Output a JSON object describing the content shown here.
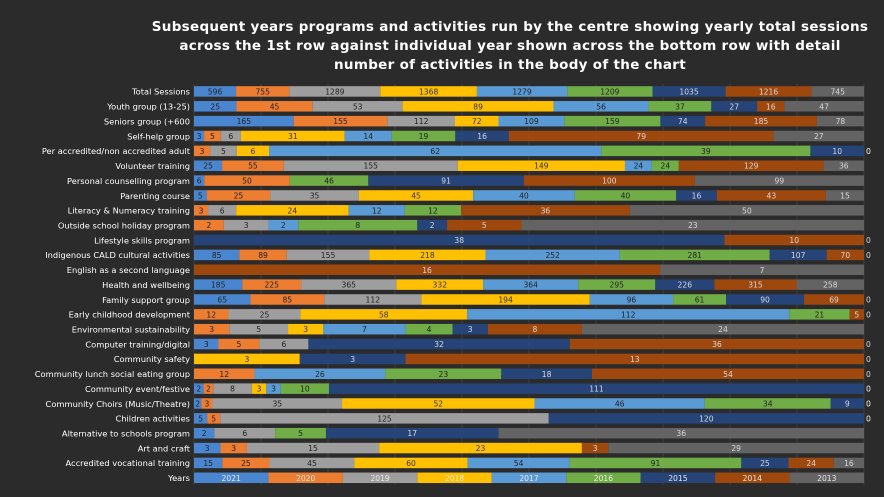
{
  "chart_data": {
    "type": "bar",
    "stacked": "percent",
    "orientation": "horizontal",
    "title": "Subsequent years programs and activities run by the centre showing yearly total sessions across the 1st row against individual year shown across the bottom row with detail  number of activities in the body of the chart",
    "grid": true,
    "legend": "none",
    "categories": [
      "Total Sessions",
      "Youth group (13-25)",
      "Seniors group (+600",
      "Self-help group",
      "Per accredited/non accredited adult",
      "Volunteer training",
      "Personal counselling program",
      "Parenting course",
      "Literacy & Numeracy training",
      "Outside school holiday program",
      "Lifestyle skills program",
      "Indigenous CALD cultural activities",
      "English as a second language",
      "Health and wellbeing",
      "Family support group",
      "Early childhood development",
      "Environmental sustainability",
      "Computer training/digital",
      "Community safety",
      "Community lunch social eating group",
      "Community event/festive",
      "Community Choirs (Music/Theatre)",
      "Children activities",
      "Alternative to schools program",
      "Art and craft",
      "Accredited vocational training",
      "Years"
    ],
    "year_row": [
      "2021",
      "2020",
      "2019",
      "2018",
      "2017",
      "2016",
      "2015",
      "2014",
      "2013"
    ],
    "series": [
      {
        "color": "#4a86cf",
        "values": [
          596,
          25,
          165,
          3,
          0,
          25,
          6,
          5,
          0,
          0,
          0,
          85,
          0,
          185,
          65,
          0,
          0,
          3,
          0,
          0,
          2,
          2,
          5,
          2,
          3,
          15,
          2021
        ]
      },
      {
        "color": "#ed7d31",
        "values": [
          755,
          45,
          155,
          5,
          3,
          55,
          50,
          25,
          3,
          2,
          0,
          89,
          0,
          225,
          85,
          12,
          3,
          5,
          0,
          12,
          2,
          3,
          5,
          0,
          3,
          25,
          2020
        ]
      },
      {
        "color": "#9e9e9e",
        "values": [
          1289,
          53,
          112,
          6,
          5,
          155,
          0,
          35,
          6,
          3,
          0,
          155,
          0,
          365,
          112,
          25,
          5,
          6,
          0,
          0,
          8,
          35,
          125,
          6,
          15,
          45,
          2019
        ]
      },
      {
        "color": "#ffc000",
        "values": [
          1368,
          89,
          72,
          31,
          6,
          149,
          0,
          45,
          24,
          0,
          0,
          218,
          0,
          332,
          194,
          58,
          3,
          0,
          3,
          0,
          3,
          52,
          0,
          0,
          23,
          60,
          2018
        ]
      },
      {
        "color": "#5b9bd5",
        "values": [
          1279,
          56,
          109,
          14,
          62,
          24,
          0,
          40,
          12,
          2,
          0,
          252,
          0,
          364,
          96,
          112,
          7,
          0,
          0,
          26,
          3,
          46,
          0,
          0,
          0,
          54,
          2017
        ]
      },
      {
        "color": "#70ad47",
        "values": [
          1209,
          37,
          159,
          19,
          39,
          24,
          46,
          40,
          12,
          8,
          0,
          281,
          0,
          295,
          61,
          21,
          4,
          0,
          0,
          23,
          10,
          34,
          0,
          5,
          0,
          91,
          2016
        ]
      },
      {
        "color": "#264478",
        "values": [
          1035,
          27,
          74,
          16,
          10,
          0,
          91,
          16,
          0,
          2,
          38,
          107,
          0,
          226,
          90,
          0,
          3,
          32,
          3,
          18,
          111,
          9,
          120,
          17,
          0,
          25,
          2015
        ]
      },
      {
        "color": "#9e480e",
        "values": [
          1216,
          16,
          185,
          79,
          0,
          129,
          100,
          43,
          36,
          5,
          10,
          70,
          16,
          315,
          69,
          5,
          8,
          36,
          13,
          54,
          0,
          0,
          0,
          0,
          3,
          24,
          2014
        ]
      },
      {
        "color": "#636363",
        "values": [
          745,
          47,
          78,
          27,
          0,
          36,
          99,
          15,
          50,
          23,
          0,
          0,
          7,
          258,
          0,
          0,
          24,
          0,
          0,
          0,
          0,
          0,
          0,
          36,
          29,
          16,
          2013
        ]
      }
    ]
  }
}
